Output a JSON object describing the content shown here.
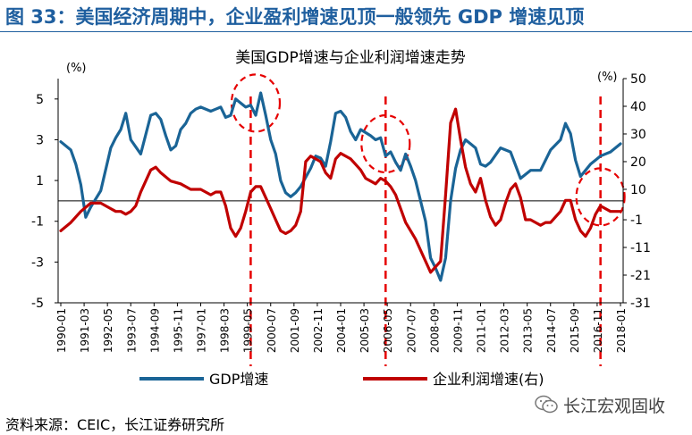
{
  "figure_title": "图 33：美国经济周期中，企业盈利增速见顶一般领先 GDP 增速见顶",
  "source": "资料来源：CEIC，长江证券研究所",
  "watermark": "长江宏观固收",
  "colors": {
    "gdp": "#1a6496",
    "profit": "#c00000",
    "title": "#1f5f9f",
    "marker": "#e60000"
  },
  "chart_data": {
    "type": "line",
    "title": "美国GDP增速与企业利润增速走势",
    "left_axis": {
      "unit": "(%)",
      "min": -5,
      "max": 6,
      "ticks": [
        5,
        3,
        1,
        -1,
        -3,
        -5
      ]
    },
    "right_axis": {
      "unit": "(%)",
      "min": -31,
      "max": 50,
      "ticks": [
        50,
        40,
        30,
        20,
        10,
        -1,
        -11,
        -21,
        -31
      ]
    },
    "x_axis": {
      "start": 1990.0,
      "end": 2018.0,
      "tick_labels": [
        "1990-01",
        "1991-03",
        "1992-05",
        "1993-07",
        "1994-09",
        "1995-11",
        "1997-01",
        "1998-03",
        "1999-05",
        "2000-07",
        "2001-09",
        "2002-11",
        "2004-01",
        "2005-03",
        "2006-05",
        "2007-07",
        "2008-09",
        "2009-11",
        "2011-01",
        "2012-03",
        "2013-05",
        "2014-07",
        "2015-09",
        "2016-11",
        "2018-01"
      ]
    },
    "series": [
      {
        "name": "GDP增速",
        "axis": "left",
        "x": [
          1990.0,
          1990.5,
          1990.75,
          1991.0,
          1991.25,
          1991.5,
          1992.0,
          1992.5,
          1992.75,
          1993.0,
          1993.25,
          1993.5,
          1994.0,
          1994.5,
          1994.75,
          1995.0,
          1995.25,
          1995.5,
          1995.75,
          1996.0,
          1996.25,
          1996.5,
          1996.75,
          1997.0,
          1997.5,
          1997.75,
          1998.0,
          1998.25,
          1998.5,
          1998.75,
          1999.0,
          1999.25,
          1999.5,
          1999.75,
          2000.0,
          2000.25,
          2000.5,
          2000.75,
          2001.0,
          2001.25,
          2001.5,
          2001.75,
          2002.0,
          2002.5,
          2002.75,
          2003.0,
          2003.25,
          2003.5,
          2003.75,
          2004.0,
          2004.25,
          2004.5,
          2004.75,
          2005.0,
          2005.5,
          2005.75,
          2006.0,
          2006.25,
          2006.5,
          2006.75,
          2007.0,
          2007.25,
          2007.5,
          2007.75,
          2008.0,
          2008.25,
          2008.5,
          2008.75,
          2009.0,
          2009.25,
          2009.5,
          2009.75,
          2010.0,
          2010.25,
          2010.5,
          2010.75,
          2011.0,
          2011.25,
          2011.5,
          2012.0,
          2012.5,
          2013.0,
          2013.5,
          2014.0,
          2014.5,
          2015.0,
          2015.25,
          2015.5,
          2015.75,
          2016.0,
          2016.25,
          2016.5,
          2016.75,
          2017.0,
          2017.5,
          2018.0
        ],
        "values": [
          2.9,
          2.5,
          1.8,
          0.8,
          -0.8,
          -0.3,
          0.5,
          2.6,
          3.1,
          3.5,
          4.3,
          3.0,
          2.3,
          4.2,
          4.3,
          4.0,
          3.2,
          2.5,
          2.7,
          3.5,
          3.8,
          4.3,
          4.5,
          4.6,
          4.4,
          4.5,
          4.6,
          4.1,
          4.2,
          5.0,
          4.8,
          4.6,
          4.7,
          4.2,
          5.3,
          4.2,
          3.0,
          2.3,
          1.0,
          0.4,
          0.2,
          0.4,
          0.7,
          1.6,
          2.2,
          2.1,
          1.7,
          2.9,
          4.3,
          4.4,
          4.1,
          3.4,
          3.0,
          3.5,
          3.2,
          3.0,
          3.1,
          2.2,
          2.4,
          1.9,
          1.5,
          2.3,
          1.7,
          1.0,
          0.0,
          -1.0,
          -2.8,
          -3.3,
          -3.9,
          -2.8,
          0.0,
          1.6,
          2.5,
          3.0,
          2.8,
          2.6,
          1.8,
          1.7,
          1.9,
          2.6,
          2.4,
          1.1,
          1.5,
          1.5,
          2.5,
          3.0,
          3.8,
          3.3,
          2.0,
          1.2,
          1.5,
          1.8,
          2.0,
          2.2,
          2.4,
          2.8
        ]
      },
      {
        "name": "企业利润增速(右)",
        "axis": "right",
        "x": [
          1990.0,
          1990.5,
          1991.0,
          1991.5,
          1992.0,
          1992.5,
          1992.75,
          1993.0,
          1993.25,
          1993.5,
          1993.75,
          1994.0,
          1994.5,
          1994.75,
          1995.0,
          1995.5,
          1996.0,
          1996.5,
          1997.0,
          1997.5,
          1997.75,
          1998.0,
          1998.25,
          1998.5,
          1998.75,
          1999.0,
          1999.25,
          1999.5,
          1999.75,
          2000.0,
          2000.25,
          2000.5,
          2000.75,
          2001.0,
          2001.25,
          2001.5,
          2001.75,
          2002.0,
          2002.25,
          2002.5,
          2002.75,
          2003.0,
          2003.25,
          2003.5,
          2003.75,
          2004.0,
          2004.5,
          2004.75,
          2005.0,
          2005.25,
          2005.5,
          2005.75,
          2006.0,
          2006.25,
          2006.5,
          2006.75,
          2007.0,
          2007.25,
          2007.5,
          2007.75,
          2008.0,
          2008.25,
          2008.5,
          2008.75,
          2009.0,
          2009.25,
          2009.5,
          2009.75,
          2010.0,
          2010.25,
          2010.5,
          2010.75,
          2011.0,
          2011.25,
          2011.5,
          2011.75,
          2012.0,
          2012.25,
          2012.5,
          2012.75,
          2013.0,
          2013.25,
          2013.5,
          2013.75,
          2014.0,
          2014.25,
          2014.5,
          2014.75,
          2015.0,
          2015.25,
          2015.5,
          2015.75,
          2016.0,
          2016.25,
          2016.5,
          2016.75,
          2017.0,
          2017.5,
          2018.0
        ],
        "values": [
          -5,
          -2,
          2,
          5,
          5,
          3,
          2,
          2,
          1,
          2,
          4,
          9,
          17,
          18,
          16,
          13,
          12,
          10,
          10,
          8,
          9,
          9,
          4,
          -4,
          -7,
          -4,
          2,
          9,
          11,
          11,
          7,
          3,
          -1,
          -5,
          -6,
          -5,
          -3,
          2,
          20,
          22,
          21,
          20,
          16,
          14,
          21,
          23,
          21,
          19,
          17,
          14,
          13,
          12,
          14,
          13,
          11,
          8,
          3,
          -2,
          -5,
          -8,
          -12,
          -16,
          -20,
          -18,
          -16,
          8,
          34,
          39,
          28,
          18,
          12,
          9,
          14,
          6,
          0,
          -3,
          -1,
          5,
          10,
          12,
          7,
          -1,
          -1,
          -2,
          -3,
          -2,
          -2,
          0,
          2,
          6,
          6,
          -1,
          -5,
          -7,
          -4,
          1,
          4,
          2,
          2
        ]
      }
    ],
    "legend": [
      "GDP增速",
      "企业利润增速(右)"
    ],
    "vertical_markers": [
      1999.5,
      2006.25,
      2017.0
    ],
    "circled_regions": [
      {
        "label": "1999-2000 peak",
        "x": 1999.75,
        "y": 4.8
      },
      {
        "label": "2006 peak",
        "x": 2006.25,
        "y": 2.8
      },
      {
        "label": "2017 peak",
        "x": 2017.0,
        "y": 0.2
      }
    ]
  }
}
